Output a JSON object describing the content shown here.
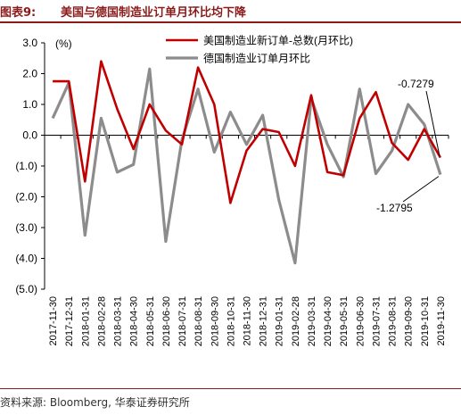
{
  "header": {
    "figure_label": "图表9:",
    "figure_title": "美国与德国制造业订单月环比均下降"
  },
  "footer": {
    "source": "资料来源: Bloomberg, 华泰证券研究所"
  },
  "colors": {
    "us_series": "#c00000",
    "de_series": "#8c8c8c",
    "title_red": "#8b1a1a"
  },
  "chart_data": {
    "type": "line",
    "ylabel": "(%)",
    "ylim": [
      -5.0,
      3.0
    ],
    "yticks": [
      3.0,
      2.0,
      1.0,
      0.0,
      -1.0,
      -2.0,
      -3.0,
      -4.0,
      -5.0
    ],
    "ytick_labels": [
      "3.0",
      "2.0",
      "1.0",
      "0.0",
      "(1.0)",
      "(2.0)",
      "(3.0)",
      "(4.0)",
      "(5.0)"
    ],
    "grid": false,
    "legend_position": "top-right",
    "x": [
      "2017-11-30",
      "2017-12-31",
      "2018-01-31",
      "2018-02-28",
      "2018-03-31",
      "2018-04-30",
      "2018-05-31",
      "2018-06-30",
      "2018-07-31",
      "2018-08-31",
      "2018-09-30",
      "2018-10-31",
      "2018-11-30",
      "2018-12-31",
      "2019-01-31",
      "2019-02-28",
      "2019-03-31",
      "2019-04-30",
      "2019-05-31",
      "2019-06-30",
      "2019-07-31",
      "2019-08-31",
      "2019-09-30",
      "2019-10-31",
      "2019-11-30"
    ],
    "series": [
      {
        "name": "美国制造业新订单-总数(月环比)",
        "values": [
          1.75,
          1.75,
          -1.5,
          2.4,
          0.85,
          -0.45,
          1.0,
          0.15,
          -0.3,
          2.2,
          1.0,
          -2.2,
          -0.5,
          0.2,
          0.1,
          -1.0,
          1.3,
          -1.2,
          -1.3,
          0.55,
          1.4,
          -0.25,
          -0.8,
          0.2,
          -0.7279
        ]
      },
      {
        "name": "德国制造业订单月环比",
        "values": [
          0.55,
          1.7,
          -3.25,
          0.55,
          -1.2,
          -0.95,
          2.15,
          -3.45,
          -0.15,
          1.5,
          -0.55,
          0.75,
          -0.3,
          0.65,
          -2.1,
          -4.15,
          1.2,
          -0.3,
          -1.35,
          1.5,
          -1.25,
          -0.5,
          1.0,
          0.35,
          -1.2795
        ]
      }
    ],
    "annotations": [
      {
        "text": "-0.7279",
        "series": 0,
        "x": "2019-11-30",
        "value": -0.7279
      },
      {
        "text": "-1.2795",
        "series": 1,
        "x": "2019-11-30",
        "value": -1.2795
      }
    ]
  }
}
